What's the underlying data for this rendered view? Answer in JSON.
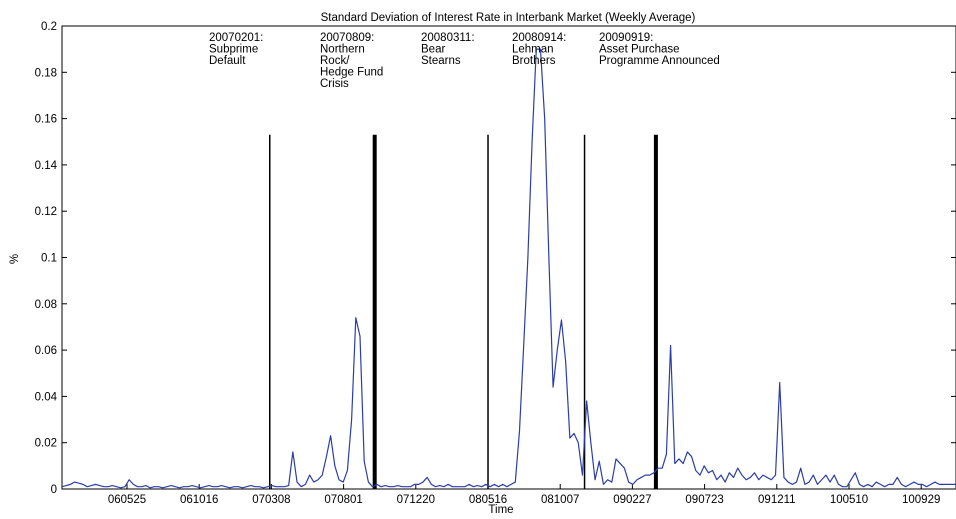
{
  "chart_data": {
    "type": "line",
    "title": "Standard Deviation of Interest Rate in Interbank Market  (Weekly Average)",
    "xlabel": "Time",
    "ylabel": "%",
    "ylim": [
      0,
      0.2
    ],
    "yticks": [
      "0",
      "0.02",
      "0.04",
      "0.06",
      "0.08",
      "0.1",
      "0.12",
      "0.14",
      "0.16",
      "0.18",
      "0.2"
    ],
    "xticks": [
      "060525",
      "061016",
      "070308",
      "070801",
      "071220",
      "080516",
      "081007",
      "090227",
      "090723",
      "091211",
      "100510",
      "100929"
    ],
    "grid": false,
    "series": [
      {
        "color": "#2b3ea8",
        "values": [
          0.001,
          0.0015,
          0.002,
          0.003,
          0.0025,
          0.002,
          0.001,
          0.0015,
          0.002,
          0.0015,
          0.001,
          0.001,
          0.0015,
          0.001,
          0.0005,
          0.001,
          0.004,
          0.002,
          0.001,
          0.001,
          0.0015,
          0.0005,
          0.001,
          0.001,
          0.0005,
          0.001,
          0.0015,
          0.001,
          0.0005,
          0.001,
          0.001,
          0.0015,
          0.001,
          0.0005,
          0.001,
          0.0015,
          0.001,
          0.001,
          0.0015,
          0.001,
          0.0005,
          0.001,
          0.001,
          0.0005,
          0.001,
          0.0015,
          0.001,
          0.001,
          0.0005,
          0.001,
          0.0015,
          0.001,
          0.001,
          0.001,
          0.0015,
          0.016,
          0.003,
          0.001,
          0.002,
          0.006,
          0.003,
          0.004,
          0.006,
          0.014,
          0.023,
          0.01,
          0.004,
          0.003,
          0.008,
          0.03,
          0.074,
          0.066,
          0.012,
          0.003,
          0.001,
          0.002,
          0.001,
          0.0015,
          0.001,
          0.001,
          0.0015,
          0.001,
          0.001,
          0.001,
          0.002,
          0.002,
          0.003,
          0.005,
          0.002,
          0.001,
          0.0015,
          0.001,
          0.002,
          0.001,
          0.001,
          0.001,
          0.001,
          0.002,
          0.001,
          0.0015,
          0.001,
          0.002,
          0.001,
          0.002,
          0.001,
          0.002,
          0.001,
          0.002,
          0.003,
          0.025,
          0.062,
          0.1,
          0.15,
          0.19,
          0.19,
          0.16,
          0.1,
          0.044,
          0.06,
          0.073,
          0.055,
          0.022,
          0.024,
          0.02,
          0.006,
          0.038,
          0.02,
          0.004,
          0.012,
          0.002,
          0.004,
          0.003,
          0.013,
          0.011,
          0.009,
          0.003,
          0.002,
          0.004,
          0.005,
          0.006,
          0.006,
          0.007,
          0.009,
          0.009,
          0.015,
          0.062,
          0.011,
          0.013,
          0.011,
          0.016,
          0.014,
          0.008,
          0.006,
          0.01,
          0.007,
          0.008,
          0.004,
          0.006,
          0.003,
          0.007,
          0.005,
          0.009,
          0.006,
          0.004,
          0.005,
          0.007,
          0.004,
          0.006,
          0.005,
          0.004,
          0.006,
          0.046,
          0.005,
          0.003,
          0.002,
          0.003,
          0.009,
          0.002,
          0.003,
          0.006,
          0.002,
          0.004,
          0.006,
          0.003,
          0.006,
          0.002,
          0.001,
          0.001,
          0.004,
          0.007,
          0.002,
          0.001,
          0.002,
          0.001,
          0.003,
          0.002,
          0.001,
          0.002,
          0.002,
          0.005,
          0.002,
          0.001,
          0.002,
          0.003,
          0.002,
          0.002,
          0.001,
          0.002,
          0.003,
          0.002,
          0.002,
          0.002,
          0.002,
          0.002
        ]
      }
    ],
    "events": [
      {
        "date": "20070201",
        "lines": [
          "20070201:",
          "Subprime",
          "Default"
        ],
        "x_index": 49.5,
        "thick": false
      },
      {
        "date": "20070809",
        "lines": [
          "20070809:",
          "Northern",
          "Rock/",
          "Hedge Fund",
          "Crisis"
        ],
        "x_index": 74.5,
        "thick": true
      },
      {
        "date": "20080311",
        "lines": [
          "20080311:",
          "Bear",
          "Stearns"
        ],
        "x_index": 101.5,
        "thick": false
      },
      {
        "date": "20080914",
        "lines": [
          "20080914:",
          "Lehman",
          "Brothers"
        ],
        "x_index": 124.5,
        "thick": false
      },
      {
        "date": "20090919",
        "lines": [
          "20090919:",
          "Asset Purchase",
          "Programme Announced"
        ],
        "x_index": 141.5,
        "thick": true
      }
    ]
  }
}
